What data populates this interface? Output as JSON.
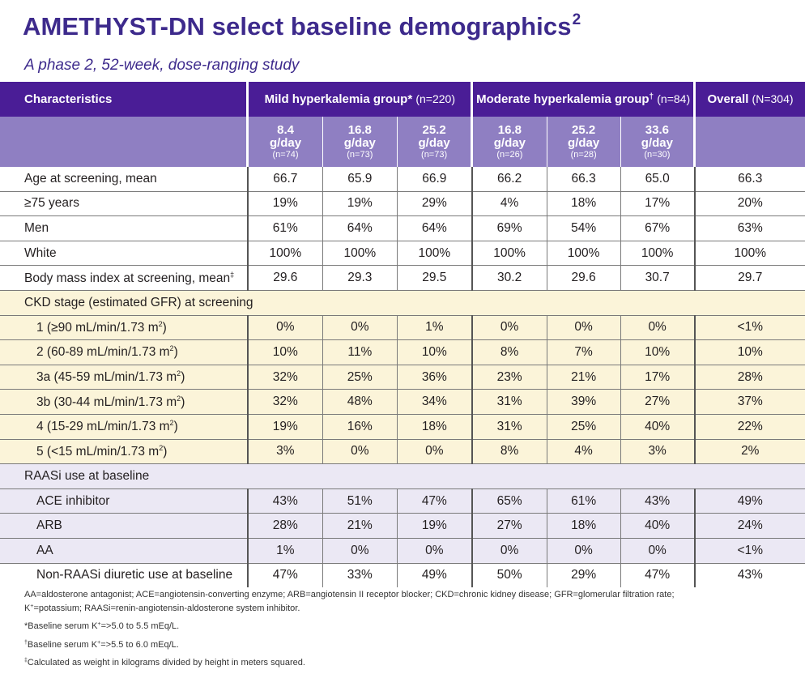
{
  "title": "AMETHYST-DN select baseline demographics",
  "title_ref": "2",
  "subtitle": "A phase 2, 52-week, dose-ranging study",
  "colors": {
    "header_dark": "#4a1d96",
    "header_light": "#8f7fc2",
    "title": "#3d2a8c",
    "cream": "#fbf4d9",
    "lavender": "#ebe8f4"
  },
  "header": {
    "characteristics": "Characteristics",
    "mild_group": "Mild hyperkalemia group",
    "mild_mark": "*",
    "mild_n": "(n=220)",
    "moderate_group": "Moderate hyperkalemia group",
    "moderate_mark": "†",
    "moderate_n": "(n=84)",
    "overall": "Overall",
    "overall_n": "(N=304)",
    "doses": [
      {
        "dose": "8.4",
        "unit": "g/day",
        "n": "(n=74)"
      },
      {
        "dose": "16.8",
        "unit": "g/day",
        "n": "(n=73)"
      },
      {
        "dose": "25.2",
        "unit": "g/day",
        "n": "(n=73)"
      },
      {
        "dose": "16.8",
        "unit": "g/day",
        "n": "(n=26)"
      },
      {
        "dose": "25.2",
        "unit": "g/day",
        "n": "(n=28)"
      },
      {
        "dose": "33.6",
        "unit": "g/day",
        "n": "(n=30)"
      }
    ]
  },
  "rows": [
    {
      "label": "Age at screening, mean",
      "values": [
        "66.7",
        "65.9",
        "66.9",
        "66.2",
        "66.3",
        "65.0",
        "66.3"
      ]
    },
    {
      "label": "≥75 years",
      "values": [
        "19%",
        "19%",
        "29%",
        "4%",
        "18%",
        "17%",
        "20%"
      ]
    },
    {
      "label": "Men",
      "values": [
        "61%",
        "64%",
        "64%",
        "69%",
        "54%",
        "67%",
        "63%"
      ]
    },
    {
      "label": "White",
      "values": [
        "100%",
        "100%",
        "100%",
        "100%",
        "100%",
        "100%",
        "100%"
      ]
    },
    {
      "label": "Body mass index at screening, mean",
      "mark": "‡",
      "values": [
        "29.6",
        "29.3",
        "29.5",
        "30.2",
        "29.6",
        "30.7",
        "29.7"
      ]
    }
  ],
  "ckd": {
    "section_label": "CKD stage (estimated GFR) at screening",
    "rows": [
      {
        "label": "1 (≥90  mL/min/1.73 m",
        "sup": "2",
        "tail": ")",
        "values": [
          "0%",
          "0%",
          "1%",
          "0%",
          "0%",
          "0%",
          "<1%"
        ]
      },
      {
        "label": "2 (60-89 mL/min/1.73 m",
        "sup": "2",
        "tail": ")",
        "values": [
          "10%",
          "11%",
          "10%",
          "8%",
          "7%",
          "10%",
          "10%"
        ]
      },
      {
        "label": "3a (45-59 mL/min/1.73 m",
        "sup": "2",
        "tail": ")",
        "values": [
          "32%",
          "25%",
          "36%",
          "23%",
          "21%",
          "17%",
          "28%"
        ]
      },
      {
        "label": "3b (30-44 mL/min/1.73 m",
        "sup": "2",
        "tail": ")",
        "values": [
          "32%",
          "48%",
          "34%",
          "31%",
          "39%",
          "27%",
          "37%"
        ]
      },
      {
        "label": "4 (15-29 mL/min/1.73 m",
        "sup": "2",
        "tail": ")",
        "values": [
          "19%",
          "16%",
          "18%",
          "31%",
          "25%",
          "40%",
          "22%"
        ]
      },
      {
        "label": "5 (<15 mL/min/1.73 m",
        "sup": "2",
        "tail": ")",
        "values": [
          "3%",
          "0%",
          "0%",
          "8%",
          "4%",
          "3%",
          "2%"
        ]
      }
    ]
  },
  "raasi": {
    "section_label": "RAASi use at baseline",
    "rows": [
      {
        "label": "ACE inhibitor",
        "values": [
          "43%",
          "51%",
          "47%",
          "65%",
          "61%",
          "43%",
          "49%"
        ]
      },
      {
        "label": "ARB",
        "values": [
          "28%",
          "21%",
          "19%",
          "27%",
          "18%",
          "40%",
          "24%"
        ]
      },
      {
        "label": "AA",
        "values": [
          "1%",
          "0%",
          "0%",
          "0%",
          "0%",
          "0%",
          "<1%"
        ]
      }
    ]
  },
  "last_row": {
    "label": "Non-RAASi diuretic use at baseline",
    "values": [
      "47%",
      "33%",
      "49%",
      "50%",
      "29%",
      "47%",
      "43%"
    ]
  },
  "footnotes": {
    "abbrev_1": "AA=aldosterone antagonist; ACE=angiotensin-converting enzyme; ARB=angiotensin II receptor blocker; CKD=chronic kidney disease; GFR=glomerular filtration rate;",
    "abbrev_2_pre": "K",
    "abbrev_2_sup": "+",
    "abbrev_2_post": "=potassium; RAASi=renin-angiotensin-aldosterone system inhibitor.",
    "mild_mark": "*",
    "mild_pre": "Baseline serum K",
    "mild_sup": "+",
    "mild_post": "=>5.0 to 5.5 mEq/L.",
    "moderate_mark": "†",
    "moderate_pre": "Baseline serum K",
    "moderate_sup": "+",
    "moderate_post": "=>5.5 to 6.0 mEq/L.",
    "bmi_mark": "‡",
    "bmi_text": "Calculated as weight in kilograms divided by height in meters squared."
  }
}
